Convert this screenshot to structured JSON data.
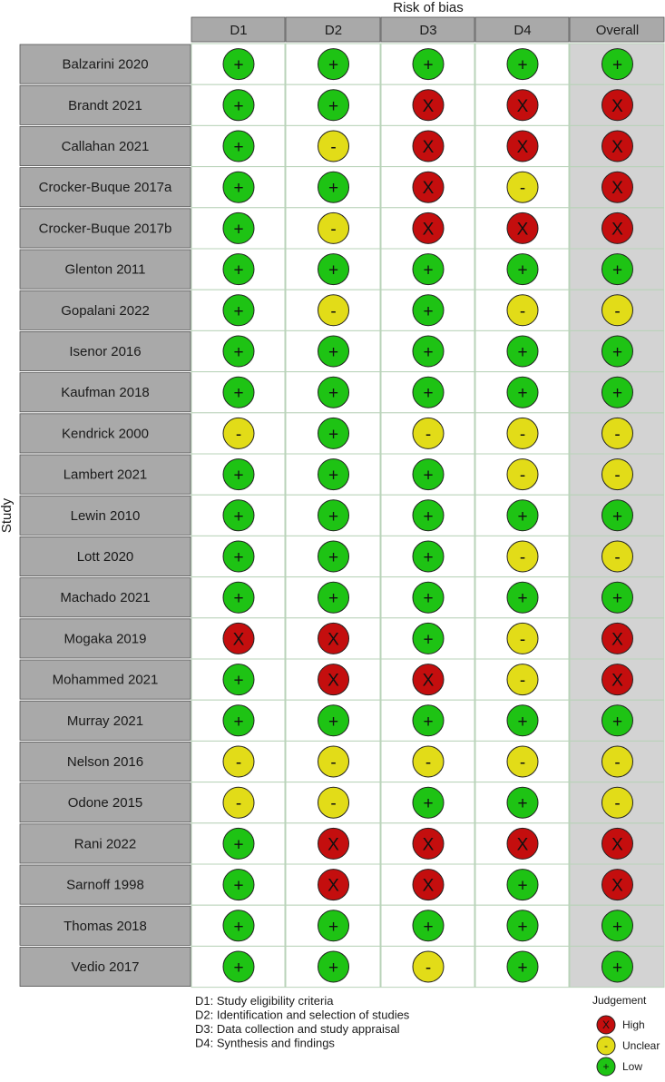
{
  "chart_data": {
    "type": "table",
    "title": "Risk of bias",
    "ylabel": "Study",
    "domains": [
      "D1",
      "D2",
      "D3",
      "D4",
      "Overall"
    ],
    "studies": [
      {
        "name": "Balzarini 2020",
        "judgements": [
          "Low",
          "Low",
          "Low",
          "Low",
          "Low"
        ]
      },
      {
        "name": "Brandt 2021",
        "judgements": [
          "Low",
          "Low",
          "High",
          "High",
          "High"
        ]
      },
      {
        "name": "Callahan 2021",
        "judgements": [
          "Low",
          "Unclear",
          "High",
          "High",
          "High"
        ]
      },
      {
        "name": "Crocker-Buque 2017a",
        "judgements": [
          "Low",
          "Low",
          "High",
          "Unclear",
          "High"
        ]
      },
      {
        "name": "Crocker-Buque 2017b",
        "judgements": [
          "Low",
          "Unclear",
          "High",
          "High",
          "High"
        ]
      },
      {
        "name": "Glenton 2011",
        "judgements": [
          "Low",
          "Low",
          "Low",
          "Low",
          "Low"
        ]
      },
      {
        "name": "Gopalani 2022",
        "judgements": [
          "Low",
          "Unclear",
          "Low",
          "Unclear",
          "Unclear"
        ]
      },
      {
        "name": "Isenor 2016",
        "judgements": [
          "Low",
          "Low",
          "Low",
          "Low",
          "Low"
        ]
      },
      {
        "name": "Kaufman 2018",
        "judgements": [
          "Low",
          "Low",
          "Low",
          "Low",
          "Low"
        ]
      },
      {
        "name": "Kendrick 2000",
        "judgements": [
          "Unclear",
          "Low",
          "Unclear",
          "Unclear",
          "Unclear"
        ]
      },
      {
        "name": "Lambert 2021",
        "judgements": [
          "Low",
          "Low",
          "Low",
          "Unclear",
          "Unclear"
        ]
      },
      {
        "name": "Lewin 2010",
        "judgements": [
          "Low",
          "Low",
          "Low",
          "Low",
          "Low"
        ]
      },
      {
        "name": "Lott 2020",
        "judgements": [
          "Low",
          "Low",
          "Low",
          "Unclear",
          "Unclear"
        ]
      },
      {
        "name": "Machado 2021",
        "judgements": [
          "Low",
          "Low",
          "Low",
          "Low",
          "Low"
        ]
      },
      {
        "name": "Mogaka 2019",
        "judgements": [
          "High",
          "High",
          "Low",
          "Unclear",
          "High"
        ]
      },
      {
        "name": "Mohammed 2021",
        "judgements": [
          "Low",
          "High",
          "High",
          "Unclear",
          "High"
        ]
      },
      {
        "name": "Murray 2021",
        "judgements": [
          "Low",
          "Low",
          "Low",
          "Low",
          "Low"
        ]
      },
      {
        "name": "Nelson 2016",
        "judgements": [
          "Unclear",
          "Unclear",
          "Unclear",
          "Unclear",
          "Unclear"
        ]
      },
      {
        "name": "Odone 2015",
        "judgements": [
          "Unclear",
          "Unclear",
          "Low",
          "Low",
          "Unclear"
        ]
      },
      {
        "name": "Rani 2022",
        "judgements": [
          "Low",
          "High",
          "High",
          "High",
          "High"
        ]
      },
      {
        "name": "Sarnoff 1998",
        "judgements": [
          "Low",
          "High",
          "High",
          "Low",
          "High"
        ]
      },
      {
        "name": "Thomas 2018",
        "judgements": [
          "Low",
          "Low",
          "Low",
          "Low",
          "Low"
        ]
      },
      {
        "name": "Vedio 2017",
        "judgements": [
          "Low",
          "Low",
          "Unclear",
          "Low",
          "Low"
        ]
      }
    ],
    "domain_definitions": [
      "D1: Study eligibility criteria",
      "D2: Identification and selection of studies",
      "D3: Data collection and study appraisal",
      "D4: Synthesis and findings"
    ],
    "legend": {
      "title": "Judgement",
      "placement": "bottom-right",
      "items": [
        {
          "label": "High",
          "symbol": "X",
          "color": "#c40e0e"
        },
        {
          "label": "Unclear",
          "symbol": "-",
          "color": "#e2dc18"
        },
        {
          "label": "Low",
          "symbol": "+",
          "color": "#1ec314"
        }
      ]
    },
    "colors": {
      "header_bg": "#a9a9a9",
      "study_bg": "#a9a9a9",
      "overall_bg": "#d3d3d3",
      "cell_bg": "#ffffff",
      "grid": "#b9d3b9"
    }
  }
}
